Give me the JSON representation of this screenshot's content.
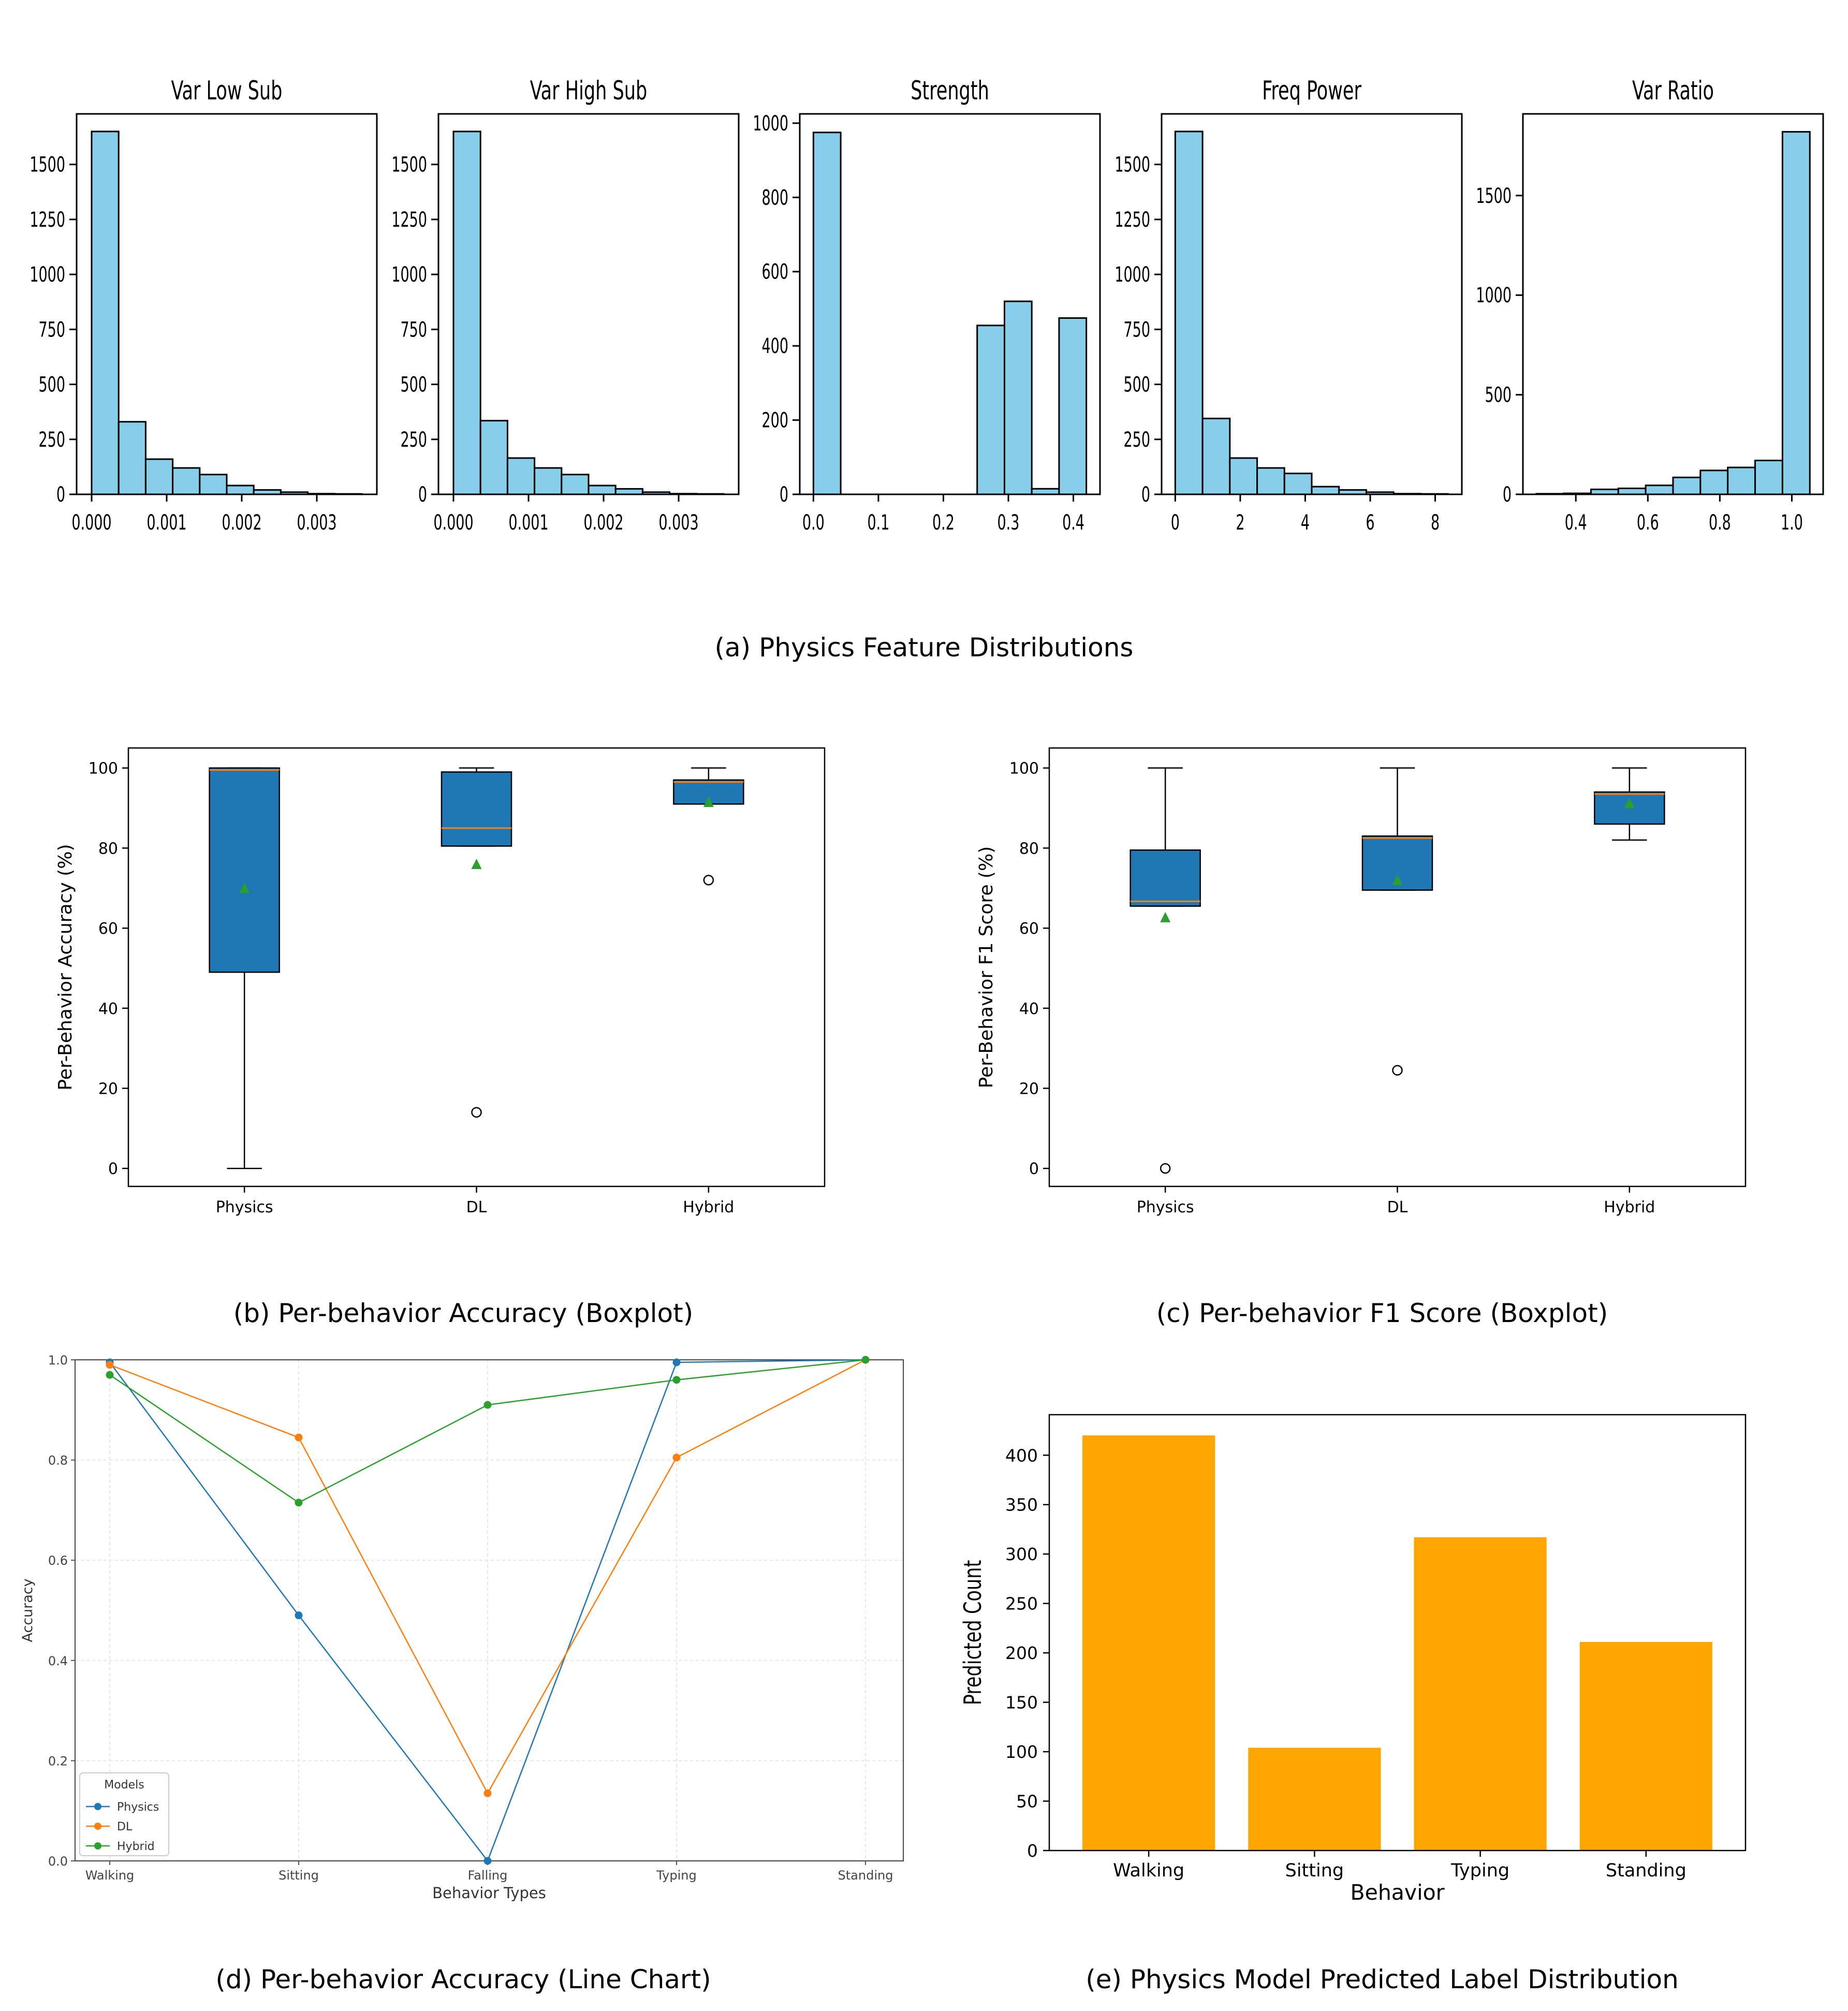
{
  "captions": {
    "a": "(a) Physics Feature Distributions",
    "b": "(b) Per-behavior Accuracy (Boxplot)",
    "c": "(c) Per-behavior F1 Score (Boxplot)",
    "d": "(d) Per-behavior Accuracy (Line Chart)",
    "e": "(e) Physics Model Predicted Label Distribution"
  },
  "colors": {
    "hist": "#87CEEB",
    "box": "#1f77b4",
    "median": "#ff7f0e",
    "mean": "#2ca02c",
    "bar": "#FFA500",
    "physics": "#1f77b4",
    "dl": "#ff7f0e",
    "hybrid": "#2ca02c"
  },
  "chart_data": [
    {
      "id": "hist-var-low-sub",
      "type": "bar",
      "title": "Var Low Sub",
      "bin_edges": [
        0.0,
        0.00036,
        0.00072,
        0.00108,
        0.00144,
        0.0018,
        0.00216,
        0.00252,
        0.00288,
        0.00324,
        0.0036
      ],
      "values": [
        1650,
        330,
        160,
        120,
        90,
        40,
        20,
        10,
        3,
        2
      ],
      "xlim": [
        -0.0002,
        0.0038
      ],
      "ylim": [
        0,
        1730
      ],
      "xticks": [
        0.0,
        0.001,
        0.002,
        0.003
      ],
      "xtick_labels": [
        "0.000",
        "0.001",
        "0.002",
        "0.003"
      ],
      "yticks": [
        0,
        250,
        500,
        750,
        1000,
        1250,
        1500
      ],
      "ytick_labels": [
        "0",
        "250",
        "500",
        "750",
        "1000",
        "1250",
        "1500"
      ]
    },
    {
      "id": "hist-var-high-sub",
      "type": "bar",
      "title": "Var High Sub",
      "bin_edges": [
        0.0,
        0.00036,
        0.00072,
        0.00108,
        0.00144,
        0.0018,
        0.00216,
        0.00252,
        0.00288,
        0.00324,
        0.0036
      ],
      "values": [
        1650,
        335,
        165,
        120,
        90,
        40,
        25,
        10,
        3,
        2
      ],
      "xlim": [
        -0.0002,
        0.0038
      ],
      "ylim": [
        0,
        1730
      ],
      "xticks": [
        0.0,
        0.001,
        0.002,
        0.003
      ],
      "xtick_labels": [
        "0.000",
        "0.001",
        "0.002",
        "0.003"
      ],
      "yticks": [
        0,
        250,
        500,
        750,
        1000,
        1250,
        1500
      ],
      "ytick_labels": [
        "0",
        "250",
        "500",
        "750",
        "1000",
        "1250",
        "1500"
      ]
    },
    {
      "id": "hist-strength",
      "type": "bar",
      "title": "Strength",
      "bin_edges": [
        0.0,
        0.042,
        0.084,
        0.126,
        0.168,
        0.21,
        0.252,
        0.294,
        0.336,
        0.378,
        0.42
      ],
      "values": [
        975,
        0,
        0,
        0,
        0,
        0,
        455,
        520,
        15,
        475
      ],
      "xlim": [
        -0.021,
        0.441
      ],
      "ylim": [
        0,
        1025
      ],
      "xticks": [
        0.0,
        0.1,
        0.2,
        0.3,
        0.4
      ],
      "xtick_labels": [
        "0.0",
        "0.1",
        "0.2",
        "0.3",
        "0.4"
      ],
      "yticks": [
        0,
        200,
        400,
        600,
        800,
        1000
      ],
      "ytick_labels": [
        "0",
        "200",
        "400",
        "600",
        "800",
        "1000"
      ]
    },
    {
      "id": "hist-freq-power",
      "type": "bar",
      "title": "Freq Power",
      "bin_edges": [
        0.0,
        0.84,
        1.68,
        2.52,
        3.36,
        4.2,
        5.04,
        5.88,
        6.72,
        7.56,
        8.4
      ],
      "values": [
        1650,
        345,
        165,
        120,
        95,
        35,
        20,
        10,
        3,
        2
      ],
      "xlim": [
        -0.42,
        8.82
      ],
      "ylim": [
        0,
        1730
      ],
      "xticks": [
        0,
        2,
        4,
        6,
        8
      ],
      "xtick_labels": [
        "0",
        "2",
        "4",
        "6",
        "8"
      ],
      "yticks": [
        0,
        250,
        500,
        750,
        1000,
        1250,
        1500
      ],
      "ytick_labels": [
        "0",
        "250",
        "500",
        "750",
        "1000",
        "1250",
        "1500"
      ]
    },
    {
      "id": "hist-var-ratio",
      "type": "bar",
      "title": "Var Ratio",
      "bin_edges": [
        0.29,
        0.366,
        0.442,
        0.518,
        0.594,
        0.67,
        0.746,
        0.822,
        0.898,
        0.974,
        1.05
      ],
      "values": [
        3,
        5,
        25,
        30,
        45,
        85,
        120,
        135,
        170,
        1820
      ],
      "xlim": [
        0.253,
        1.087
      ],
      "ylim": [
        0,
        1910
      ],
      "xticks": [
        0.4,
        0.6,
        0.8,
        1.0
      ],
      "xtick_labels": [
        "0.4",
        "0.6",
        "0.8",
        "1.0"
      ],
      "yticks": [
        0,
        500,
        1000,
        1500
      ],
      "ytick_labels": [
        "0",
        "500",
        "1000",
        "1500"
      ]
    },
    {
      "id": "box-accuracy",
      "type": "box",
      "ylabel": "Per-Behavior Accuracy (%)",
      "categories": [
        "Physics",
        "DL",
        "Hybrid"
      ],
      "boxes": [
        {
          "whislo": 0,
          "q1": 49,
          "median": 99.5,
          "q3": 100,
          "whishi": 100,
          "mean": 69.8,
          "fliers": []
        },
        {
          "whislo": 80.5,
          "q1": 80.5,
          "median": 85,
          "q3": 99,
          "whishi": 100,
          "mean": 75.8,
          "fliers": [
            14
          ]
        },
        {
          "whislo": 91,
          "q1": 91,
          "median": 96.5,
          "q3": 97,
          "whishi": 100,
          "mean": 91.3,
          "fliers": [
            72
          ]
        }
      ],
      "ylim": [
        -4.5,
        105
      ],
      "yticks": [
        0,
        20,
        40,
        60,
        80,
        100
      ],
      "ytick_labels": [
        "0",
        "20",
        "40",
        "60",
        "80",
        "100"
      ]
    },
    {
      "id": "box-f1",
      "type": "box",
      "ylabel": "Per-Behavior F1 Score (%)",
      "categories": [
        "Physics",
        "DL",
        "Hybrid"
      ],
      "boxes": [
        {
          "whislo": 65.5,
          "q1": 65.5,
          "median": 66.7,
          "q3": 79.5,
          "whishi": 100,
          "mean": 62.5,
          "fliers": [
            0
          ]
        },
        {
          "whislo": 69.5,
          "q1": 69.5,
          "median": 82.5,
          "q3": 83,
          "whishi": 100,
          "mean": 71.8,
          "fliers": [
            24.5
          ]
        },
        {
          "whislo": 82,
          "q1": 86,
          "median": 93.5,
          "q3": 94,
          "whishi": 100,
          "mean": 91,
          "fliers": []
        }
      ],
      "ylim": [
        -4.5,
        105
      ],
      "yticks": [
        0,
        20,
        40,
        60,
        80,
        100
      ],
      "ytick_labels": [
        "0",
        "20",
        "40",
        "60",
        "80",
        "100"
      ]
    },
    {
      "id": "line-accuracy",
      "type": "line",
      "xlabel": "Behavior Types",
      "ylabel": "Accuracy",
      "categories": [
        "Walking",
        "Sitting",
        "Falling",
        "Typing",
        "Standing"
      ],
      "series": [
        {
          "name": "Physics",
          "values": [
            0.995,
            0.49,
            0.0,
            0.995,
            1.0
          ]
        },
        {
          "name": "DL",
          "values": [
            0.99,
            0.845,
            0.135,
            0.805,
            1.0
          ]
        },
        {
          "name": "Hybrid",
          "values": [
            0.97,
            0.715,
            0.91,
            0.96,
            1.0
          ]
        }
      ],
      "legend_title": "Models",
      "legend_position": "lower-left",
      "ylim": [
        0.0,
        1.0
      ],
      "yticks": [
        0.0,
        0.2,
        0.4,
        0.6,
        0.8,
        1.0
      ],
      "ytick_labels": [
        "0.0",
        "0.2",
        "0.4",
        "0.6",
        "0.8",
        "1.0"
      ],
      "grid": true
    },
    {
      "id": "bar-predicted",
      "type": "bar",
      "xlabel": "Behavior",
      "ylabel": "Predicted Count",
      "categories": [
        "Walking",
        "Sitting",
        "Typing",
        "Standing"
      ],
      "values": [
        420,
        104,
        317,
        211
      ],
      "ylim": [
        0,
        441
      ],
      "yticks": [
        0,
        50,
        100,
        150,
        200,
        250,
        300,
        350,
        400
      ],
      "ytick_labels": [
        "0",
        "50",
        "100",
        "150",
        "200",
        "250",
        "300",
        "350",
        "400"
      ]
    }
  ]
}
